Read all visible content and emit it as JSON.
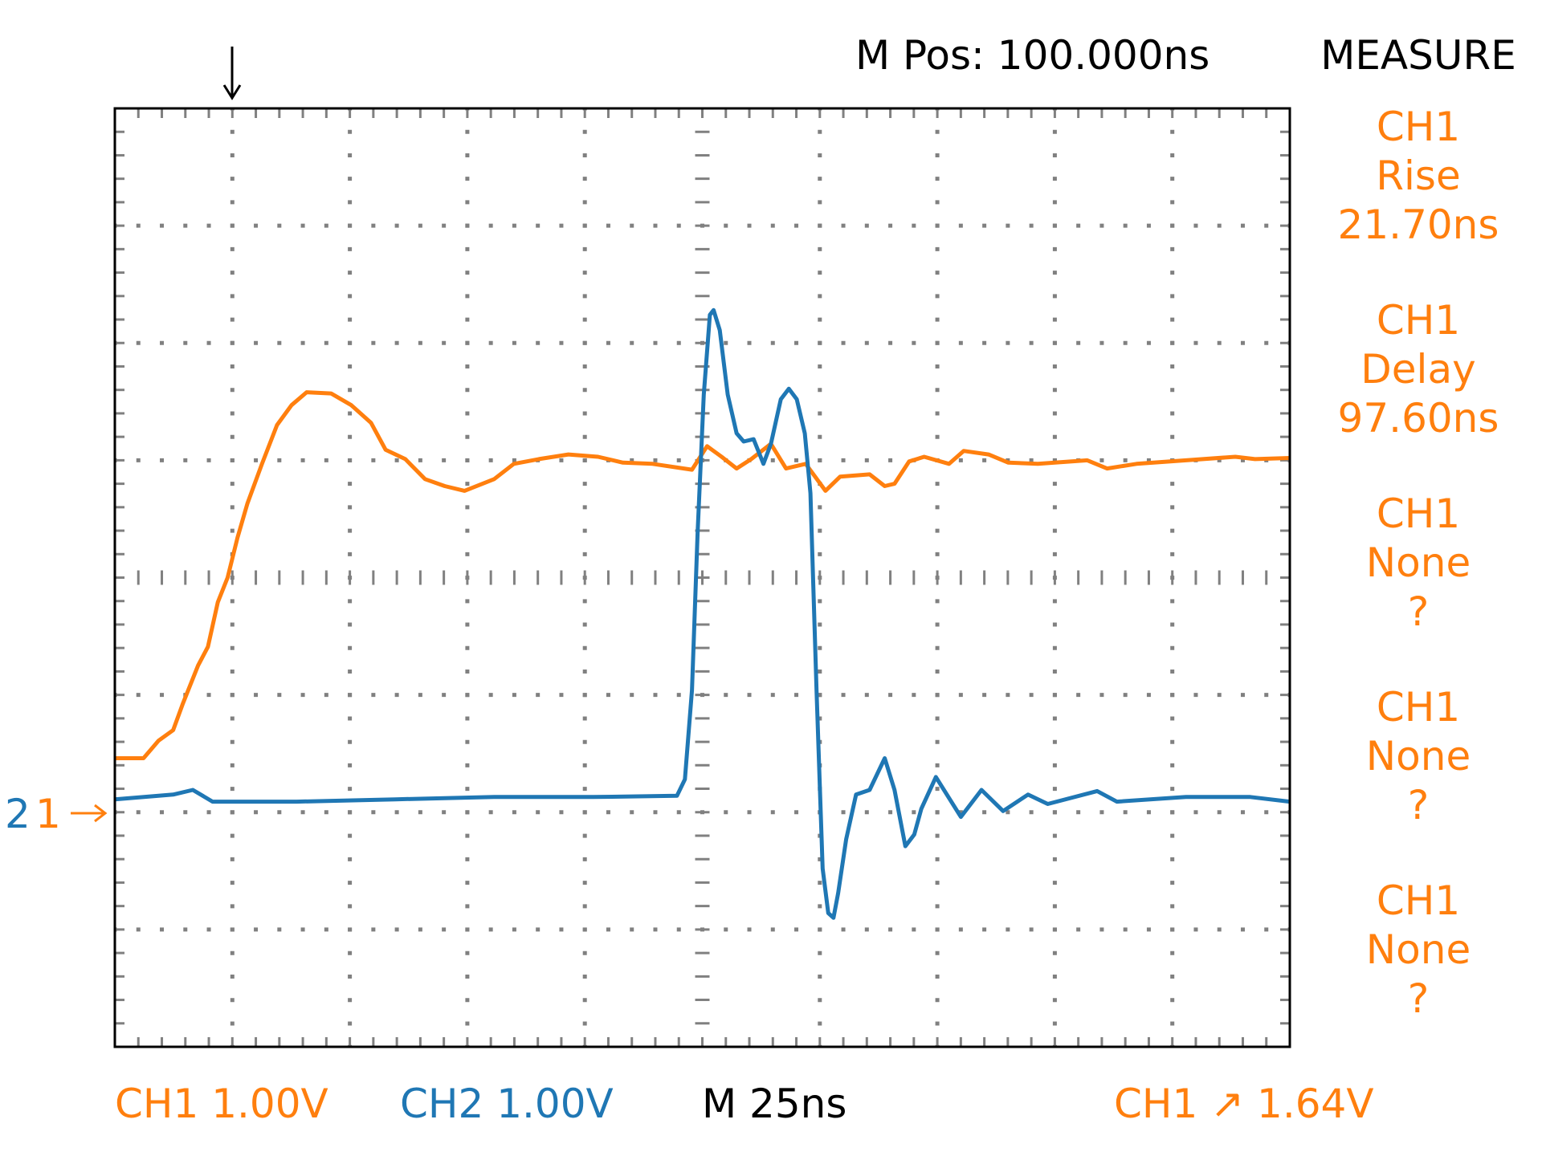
{
  "header": {
    "mpos": "M Pos: 100.000ns",
    "measure_title": "MEASURE"
  },
  "measurements": [
    {
      "source": "CH1",
      "type": "Rise",
      "value": "21.70ns"
    },
    {
      "source": "CH1",
      "type": "Delay",
      "value": "97.60ns"
    },
    {
      "source": "CH1",
      "type": "None",
      "value": "?"
    },
    {
      "source": "CH1",
      "type": "None",
      "value": "?"
    },
    {
      "source": "CH1",
      "type": "None",
      "value": "?"
    }
  ],
  "footer": {
    "ch1_scale": "CH1 1.00V",
    "ch2_scale": "CH2 1.00V",
    "timebase": "M 25ns",
    "trigger": "CH1 ↗ 1.64V"
  },
  "markers": {
    "ch1": "1",
    "ch2": "2",
    "arrow": "→"
  },
  "colors": {
    "ch1": "#ff7f0e",
    "ch2": "#1f77b4",
    "grid": "#808080",
    "text": "#000000"
  },
  "chart_data": {
    "type": "line",
    "title": "",
    "xlabel": "",
    "ylabel": "",
    "x_units": "ns",
    "y_units": "V",
    "xlim": [
      0,
      250
    ],
    "ylim": [
      -2,
      6
    ],
    "divisions": {
      "x": 10,
      "y": 8
    },
    "grid": true,
    "trigger_position_ns": 25,
    "series": [
      {
        "name": "CH1",
        "color": "#ff7f0e",
        "points": [
          [
            0,
            0.46
          ],
          [
            6.1,
            0.46
          ],
          [
            9.3,
            0.61
          ],
          [
            12.4,
            0.7
          ],
          [
            14.5,
            0.93
          ],
          [
            17.7,
            1.25
          ],
          [
            19.8,
            1.41
          ],
          [
            21.9,
            1.79
          ],
          [
            24.0,
            2.0
          ],
          [
            26.1,
            2.34
          ],
          [
            28.2,
            2.63
          ],
          [
            31.3,
            2.97
          ],
          [
            34.5,
            3.3
          ],
          [
            37.6,
            3.47
          ],
          [
            40.8,
            3.58
          ],
          [
            46.0,
            3.57
          ],
          [
            50.3,
            3.47
          ],
          [
            54.5,
            3.32
          ],
          [
            57.6,
            3.09
          ],
          [
            61.8,
            3.01
          ],
          [
            66.0,
            2.84
          ],
          [
            70.2,
            2.78
          ],
          [
            74.4,
            2.74
          ],
          [
            80.7,
            2.84
          ],
          [
            84.9,
            2.97
          ],
          [
            90.2,
            3.01
          ],
          [
            96.5,
            3.05
          ],
          [
            102.8,
            3.03
          ],
          [
            108.1,
            2.98
          ],
          [
            114.4,
            2.97
          ],
          [
            122.8,
            2.92
          ],
          [
            126.0,
            3.12
          ],
          [
            129.1,
            3.03
          ],
          [
            132.3,
            2.93
          ],
          [
            135.4,
            3.01
          ],
          [
            139.6,
            3.14
          ],
          [
            142.8,
            2.93
          ],
          [
            147.0,
            2.97
          ],
          [
            151.2,
            2.74
          ],
          [
            154.3,
            2.86
          ],
          [
            160.6,
            2.88
          ],
          [
            163.8,
            2.78
          ],
          [
            165.9,
            2.8
          ],
          [
            169.0,
            2.99
          ],
          [
            172.2,
            3.03
          ],
          [
            177.5,
            2.97
          ],
          [
            180.6,
            3.08
          ],
          [
            185.9,
            3.05
          ],
          [
            190.1,
            2.98
          ],
          [
            196.4,
            2.97
          ],
          [
            206.9,
            3.0
          ],
          [
            211.1,
            2.93
          ],
          [
            217.4,
            2.97
          ],
          [
            227.9,
            3.0
          ],
          [
            238.4,
            3.03
          ],
          [
            242.6,
            3.01
          ],
          [
            250.0,
            3.02
          ]
        ]
      },
      {
        "name": "CH2",
        "color": "#1f77b4",
        "points": [
          [
            0,
            0.11
          ],
          [
            12.4,
            0.15
          ],
          [
            16.6,
            0.19
          ],
          [
            20.8,
            0.09
          ],
          [
            38.7,
            0.09
          ],
          [
            59.7,
            0.11
          ],
          [
            80.7,
            0.13
          ],
          [
            101.8,
            0.13
          ],
          [
            119.6,
            0.14
          ],
          [
            121.3,
            0.28
          ],
          [
            122.8,
            1.04
          ],
          [
            124.0,
            2.38
          ],
          [
            125.3,
            3.56
          ],
          [
            126.6,
            4.24
          ],
          [
            127.4,
            4.28
          ],
          [
            128.7,
            4.11
          ],
          [
            130.4,
            3.56
          ],
          [
            132.3,
            3.23
          ],
          [
            133.8,
            3.16
          ],
          [
            135.9,
            3.18
          ],
          [
            138.0,
            2.97
          ],
          [
            139.6,
            3.14
          ],
          [
            141.7,
            3.52
          ],
          [
            143.4,
            3.61
          ],
          [
            145.1,
            3.52
          ],
          [
            146.8,
            3.23
          ],
          [
            148.0,
            2.72
          ],
          [
            149.3,
            1.04
          ],
          [
            150.6,
            -0.48
          ],
          [
            151.8,
            -0.86
          ],
          [
            152.9,
            -0.9
          ],
          [
            153.9,
            -0.69
          ],
          [
            155.6,
            -0.23
          ],
          [
            157.7,
            0.15
          ],
          [
            160.6,
            0.19
          ],
          [
            163.8,
            0.46
          ],
          [
            165.9,
            0.19
          ],
          [
            168.2,
            -0.29
          ],
          [
            170.1,
            -0.19
          ],
          [
            171.6,
            0.03
          ],
          [
            174.7,
            0.3
          ],
          [
            180.0,
            -0.04
          ],
          [
            184.4,
            0.19
          ],
          [
            189.0,
            0.01
          ],
          [
            194.3,
            0.15
          ],
          [
            198.5,
            0.07
          ],
          [
            209.0,
            0.18
          ],
          [
            213.2,
            0.09
          ],
          [
            227.9,
            0.13
          ],
          [
            241.6,
            0.13
          ],
          [
            250,
            0.09
          ]
        ]
      }
    ]
  }
}
